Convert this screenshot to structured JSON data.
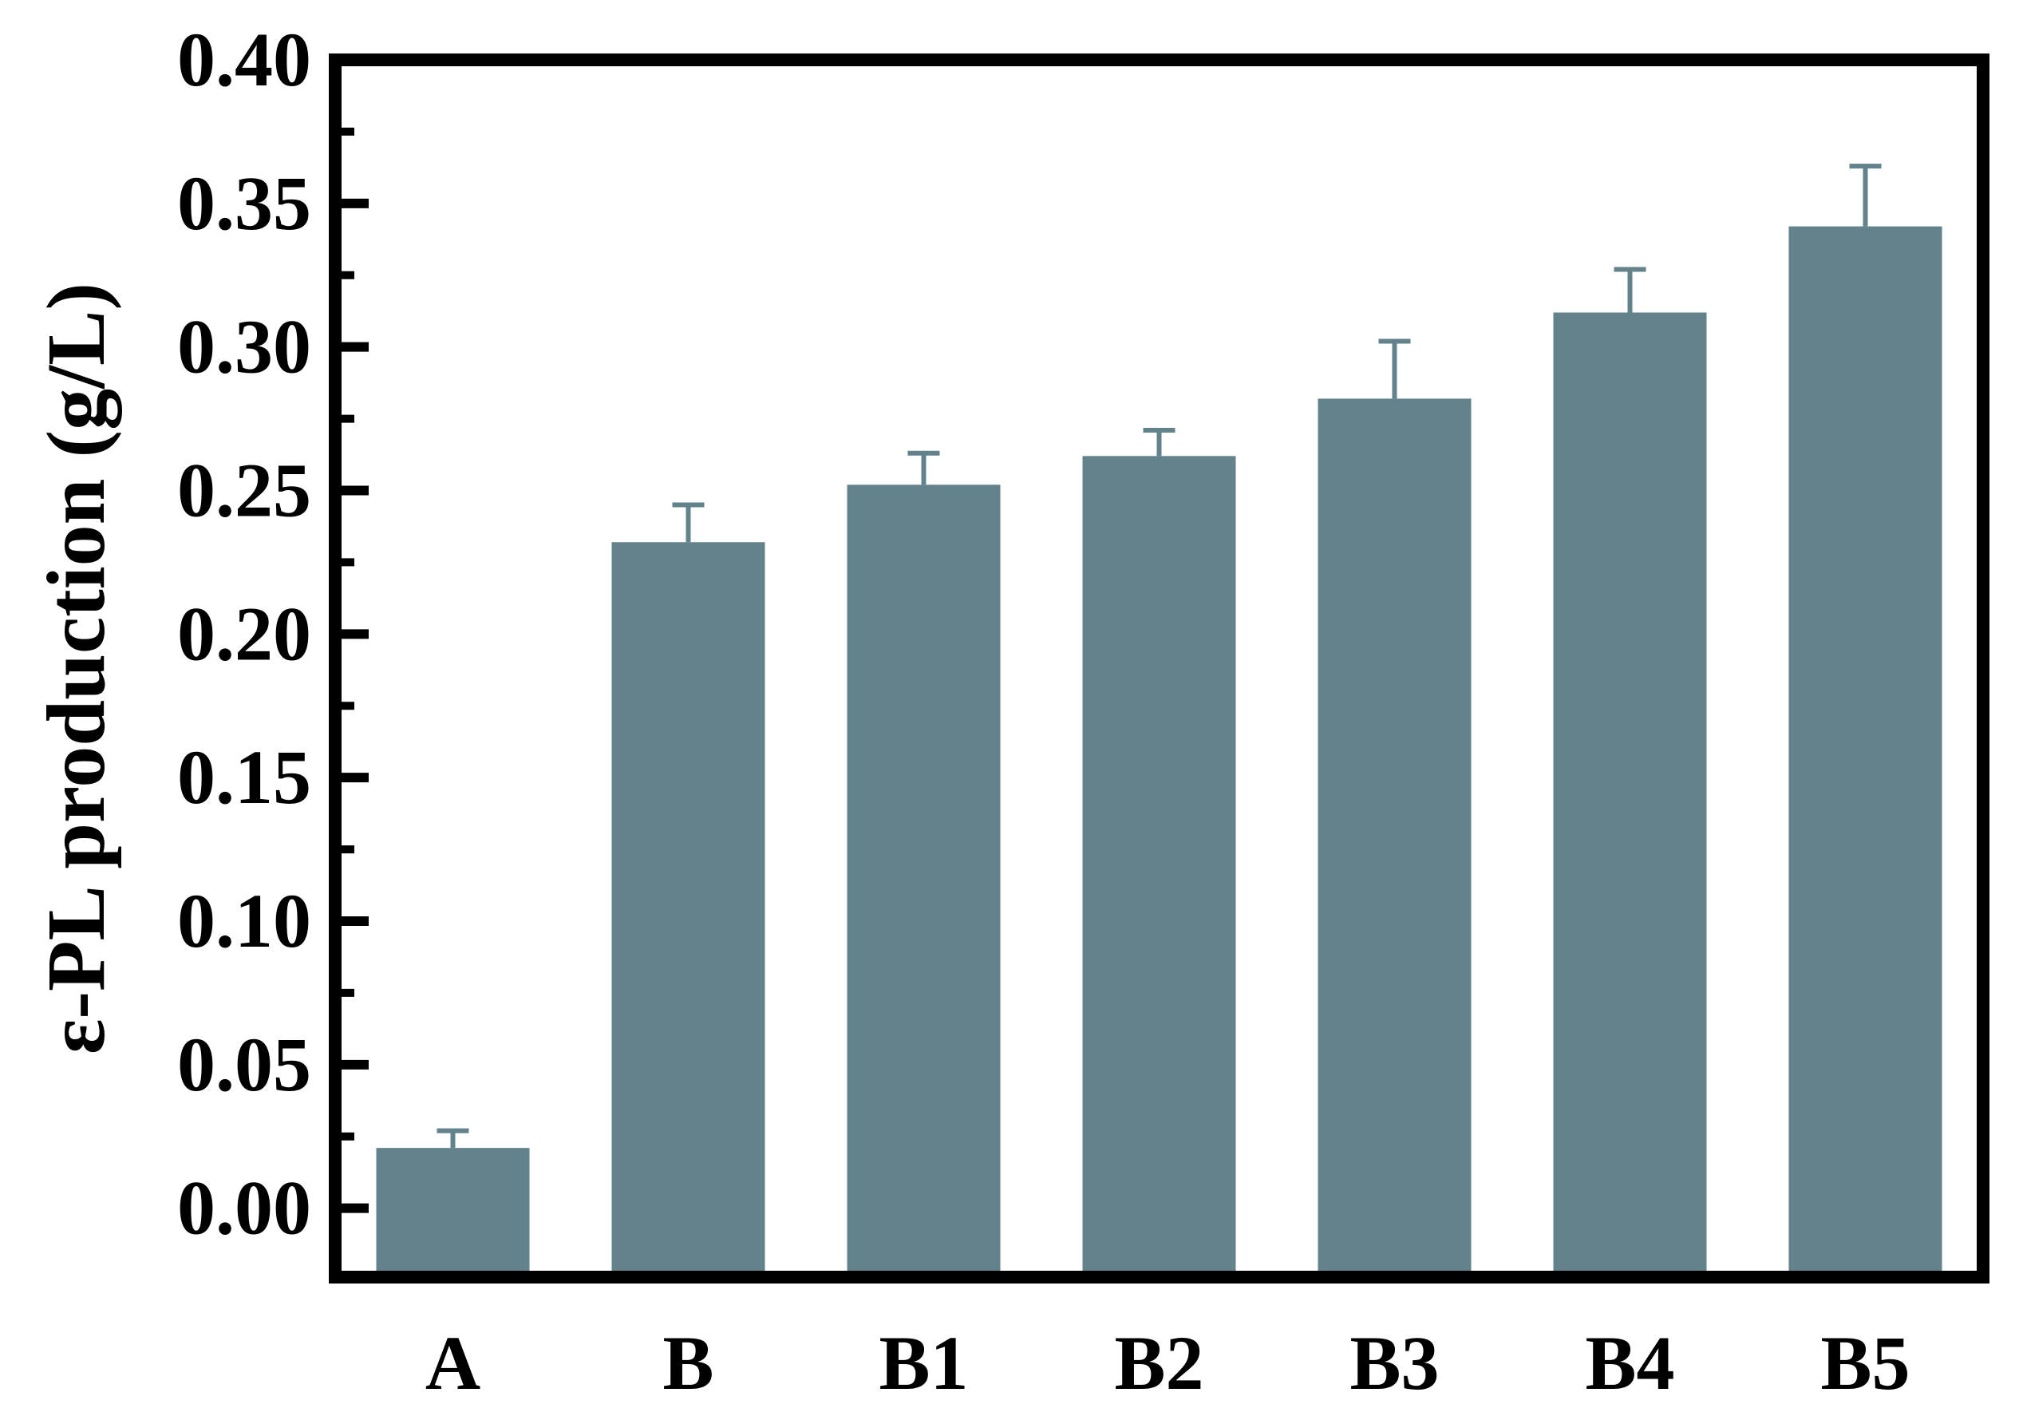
{
  "chart_data": {
    "type": "bar",
    "title": "",
    "xlabel": "",
    "ylabel": "ε-PL production (g/L)",
    "categories": [
      "A",
      "B",
      "B1",
      "B2",
      "B3",
      "B4",
      "B5"
    ],
    "series": [
      {
        "values": [
          0.021,
          0.232,
          0.252,
          0.262,
          0.282,
          0.312,
          0.342
        ],
        "errors": [
          0.006,
          0.013,
          0.011,
          0.009,
          0.02,
          0.015,
          0.021
        ]
      }
    ],
    "ylim": [
      -0.024,
      0.4
    ],
    "yticks": [
      "0.00",
      "0.05",
      "0.10",
      "0.15",
      "0.20",
      "0.25",
      "0.30",
      "0.35",
      "0.40"
    ],
    "ytick_values": [
      0,
      0.05,
      0.1,
      0.15,
      0.2,
      0.25,
      0.3,
      0.35,
      0.4
    ],
    "grid": false,
    "legend": "none",
    "colors": {
      "bar": "#62828c",
      "error_bar": "#62828c",
      "frame": "#000000"
    }
  }
}
